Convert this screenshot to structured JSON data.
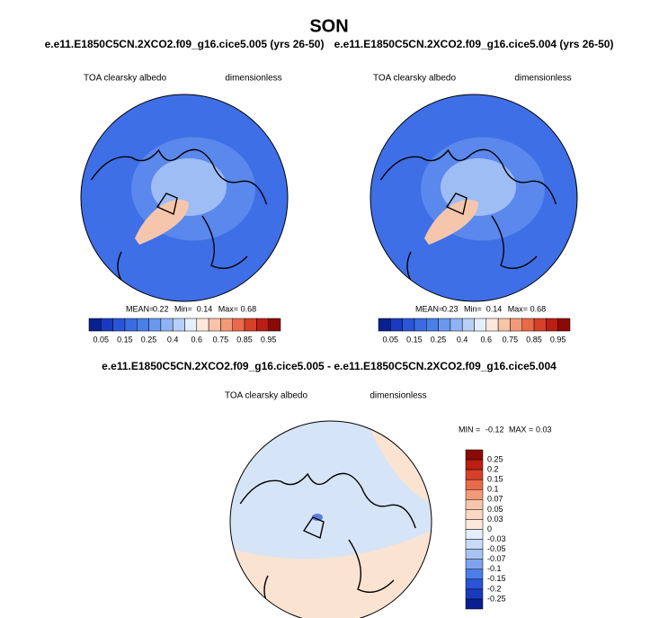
{
  "title": "SON",
  "panels": [
    {
      "case": "e.e11.E1850C5CN.2XCO2.f09_g16.cice5.005 (yrs 26-50)",
      "variable": "TOA clearsky albedo",
      "units": "dimensionless",
      "stats": [
        {
          "label": "MEAN=",
          "value": 0.22
        },
        {
          "label": "Min=",
          "value": 0.14
        },
        {
          "label": "Max=",
          "value": 0.68
        }
      ],
      "colorbar": [
        0.05,
        0.15,
        0.25,
        0.4,
        0.6,
        0.75,
        0.85,
        0.95
      ]
    },
    {
      "case": "e.e11.E1850C5CN.2XCO2.f09_g16.cice5.004 (yrs 26-50)",
      "variable": "TOA clearsky albedo",
      "units": "dimensionless",
      "stats": [
        {
          "label": "MEAN=",
          "value": 0.23
        },
        {
          "label": "Min=",
          "value": 0.14
        },
        {
          "label": "Max=",
          "value": 0.68
        }
      ],
      "colorbar": [
        0.05,
        0.15,
        0.25,
        0.4,
        0.6,
        0.75,
        0.85,
        0.95
      ]
    }
  ],
  "difference": {
    "case": "e.e11.E1850C5CN.2XCO2.f09_g16.cice5.005 - e.e11.E1850C5CN.2XCO2.f09_g16.cice5.004",
    "variable": "TOA clearsky albedo",
    "units": "dimensionless",
    "stats": [
      {
        "label": "MIN =",
        "value": -0.12
      },
      {
        "label": "MAX =",
        "value": 0.03
      }
    ],
    "colorbar": [
      0.25,
      0.2,
      0.15,
      0.1,
      0.07,
      0.05,
      0.03,
      0,
      -0.03,
      -0.05,
      -0.07,
      -0.1,
      -0.15,
      -0.2,
      -0.25
    ]
  }
}
